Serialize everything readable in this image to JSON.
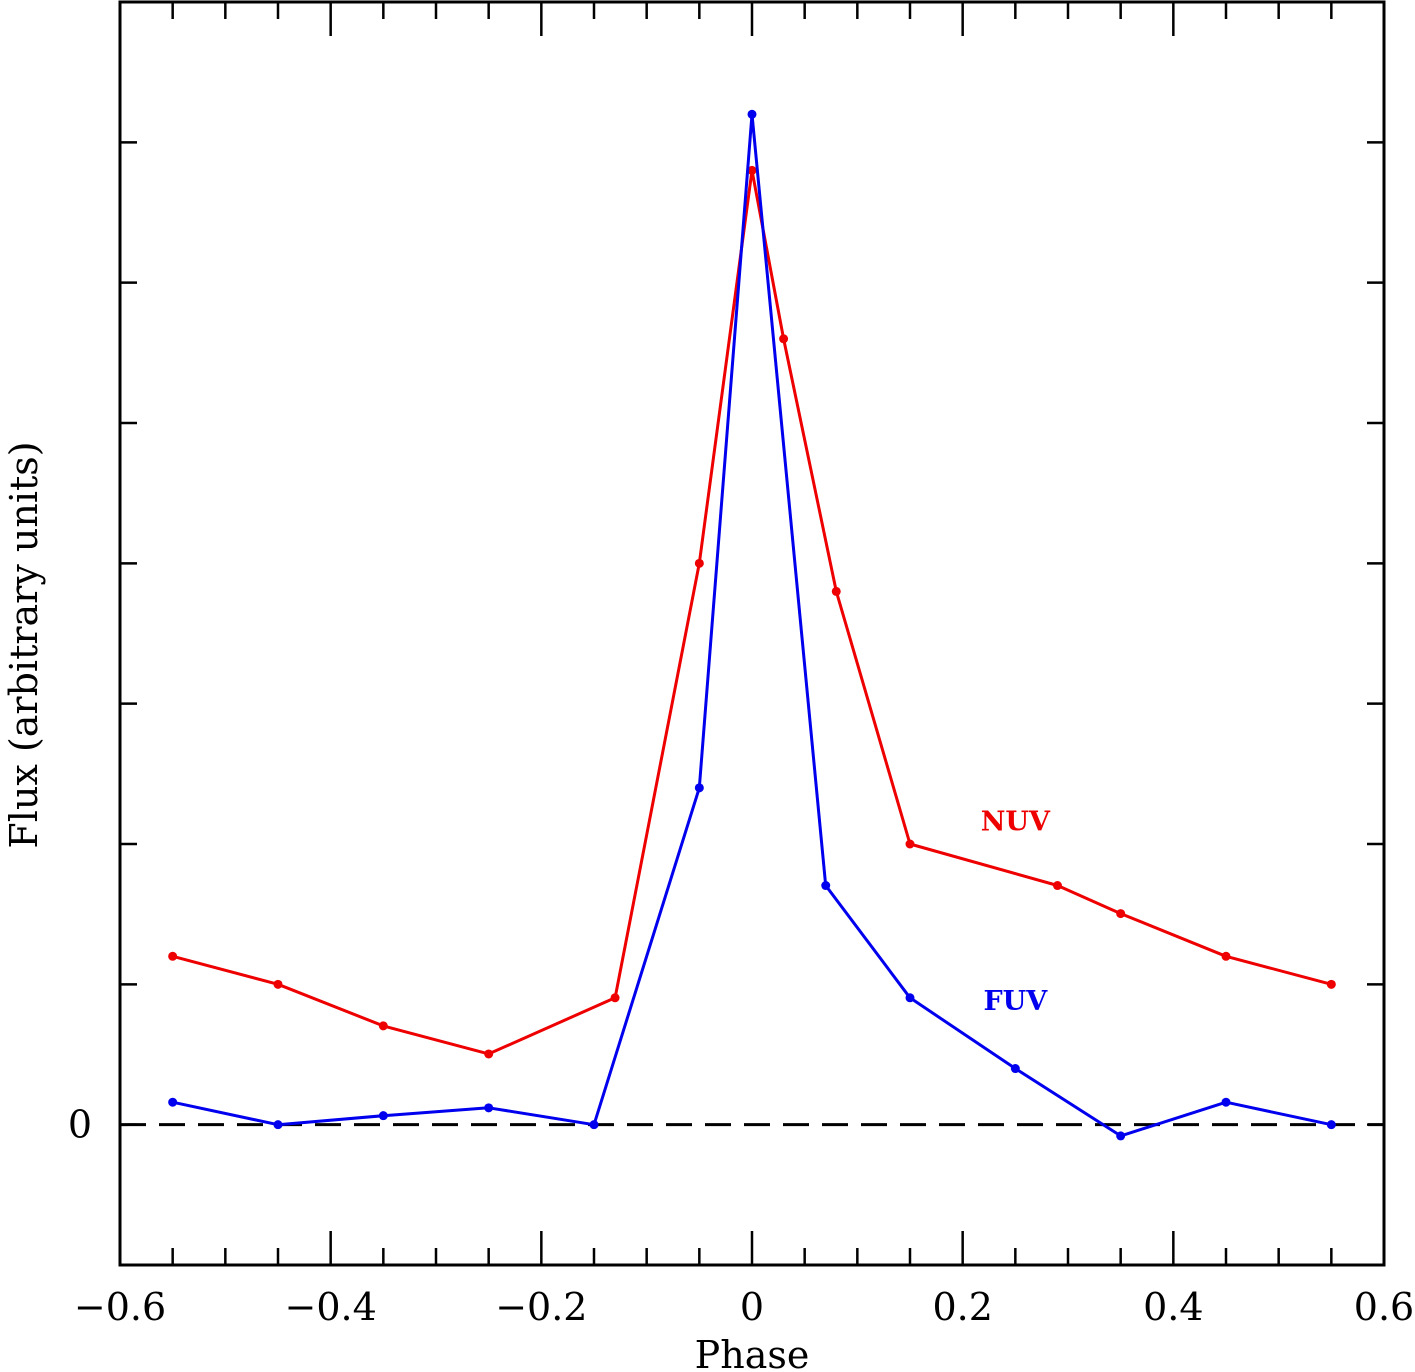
{
  "chart_data": {
    "type": "line",
    "title": "",
    "xlabel": "Phase",
    "ylabel": "Flux (arbitrary units)",
    "xlim": [
      -0.6,
      0.6
    ],
    "ylim": [
      -1.25,
      10.0
    ],
    "x_ticks": [
      {
        "value": -0.6,
        "label": "−0.6"
      },
      {
        "value": -0.4,
        "label": "−0.4"
      },
      {
        "value": -0.2,
        "label": "−0.2"
      },
      {
        "value": 0,
        "label": "0"
      },
      {
        "value": 0.2,
        "label": "0.2"
      },
      {
        "value": 0.4,
        "label": "0.4"
      },
      {
        "value": 0.6,
        "label": "0.6"
      }
    ],
    "y_ticks": [
      {
        "value": 0,
        "label": "0"
      }
    ],
    "zero_line": {
      "y": 0,
      "style": "dashed",
      "color": "#000000"
    },
    "grid": false,
    "legend": "none",
    "series": [
      {
        "name": "NUV",
        "color": "#ee0000",
        "label_at": {
          "x": 0.25,
          "y": 2.62
        },
        "x": [
          -0.55,
          -0.45,
          -0.35,
          -0.25,
          -0.13,
          -0.05,
          0.0,
          0.03,
          0.08,
          0.15,
          0.29,
          0.35,
          0.45,
          0.55
        ],
        "values": [
          1.5,
          1.25,
          0.88,
          0.63,
          1.13,
          5.0,
          8.5,
          7.0,
          4.75,
          2.5,
          2.13,
          1.88,
          1.5,
          1.25
        ]
      },
      {
        "name": "FUV",
        "color": "#0000ee",
        "label_at": {
          "x": 0.25,
          "y": 1.02
        },
        "x": [
          -0.55,
          -0.45,
          -0.35,
          -0.25,
          -0.15,
          -0.05,
          0.0,
          0.07,
          0.15,
          0.25,
          0.35,
          0.45,
          0.55
        ],
        "values": [
          0.2,
          0.0,
          0.08,
          0.15,
          0.0,
          3.0,
          9.0,
          2.13,
          1.13,
          0.5,
          -0.1,
          0.2,
          0.0
        ]
      }
    ]
  }
}
